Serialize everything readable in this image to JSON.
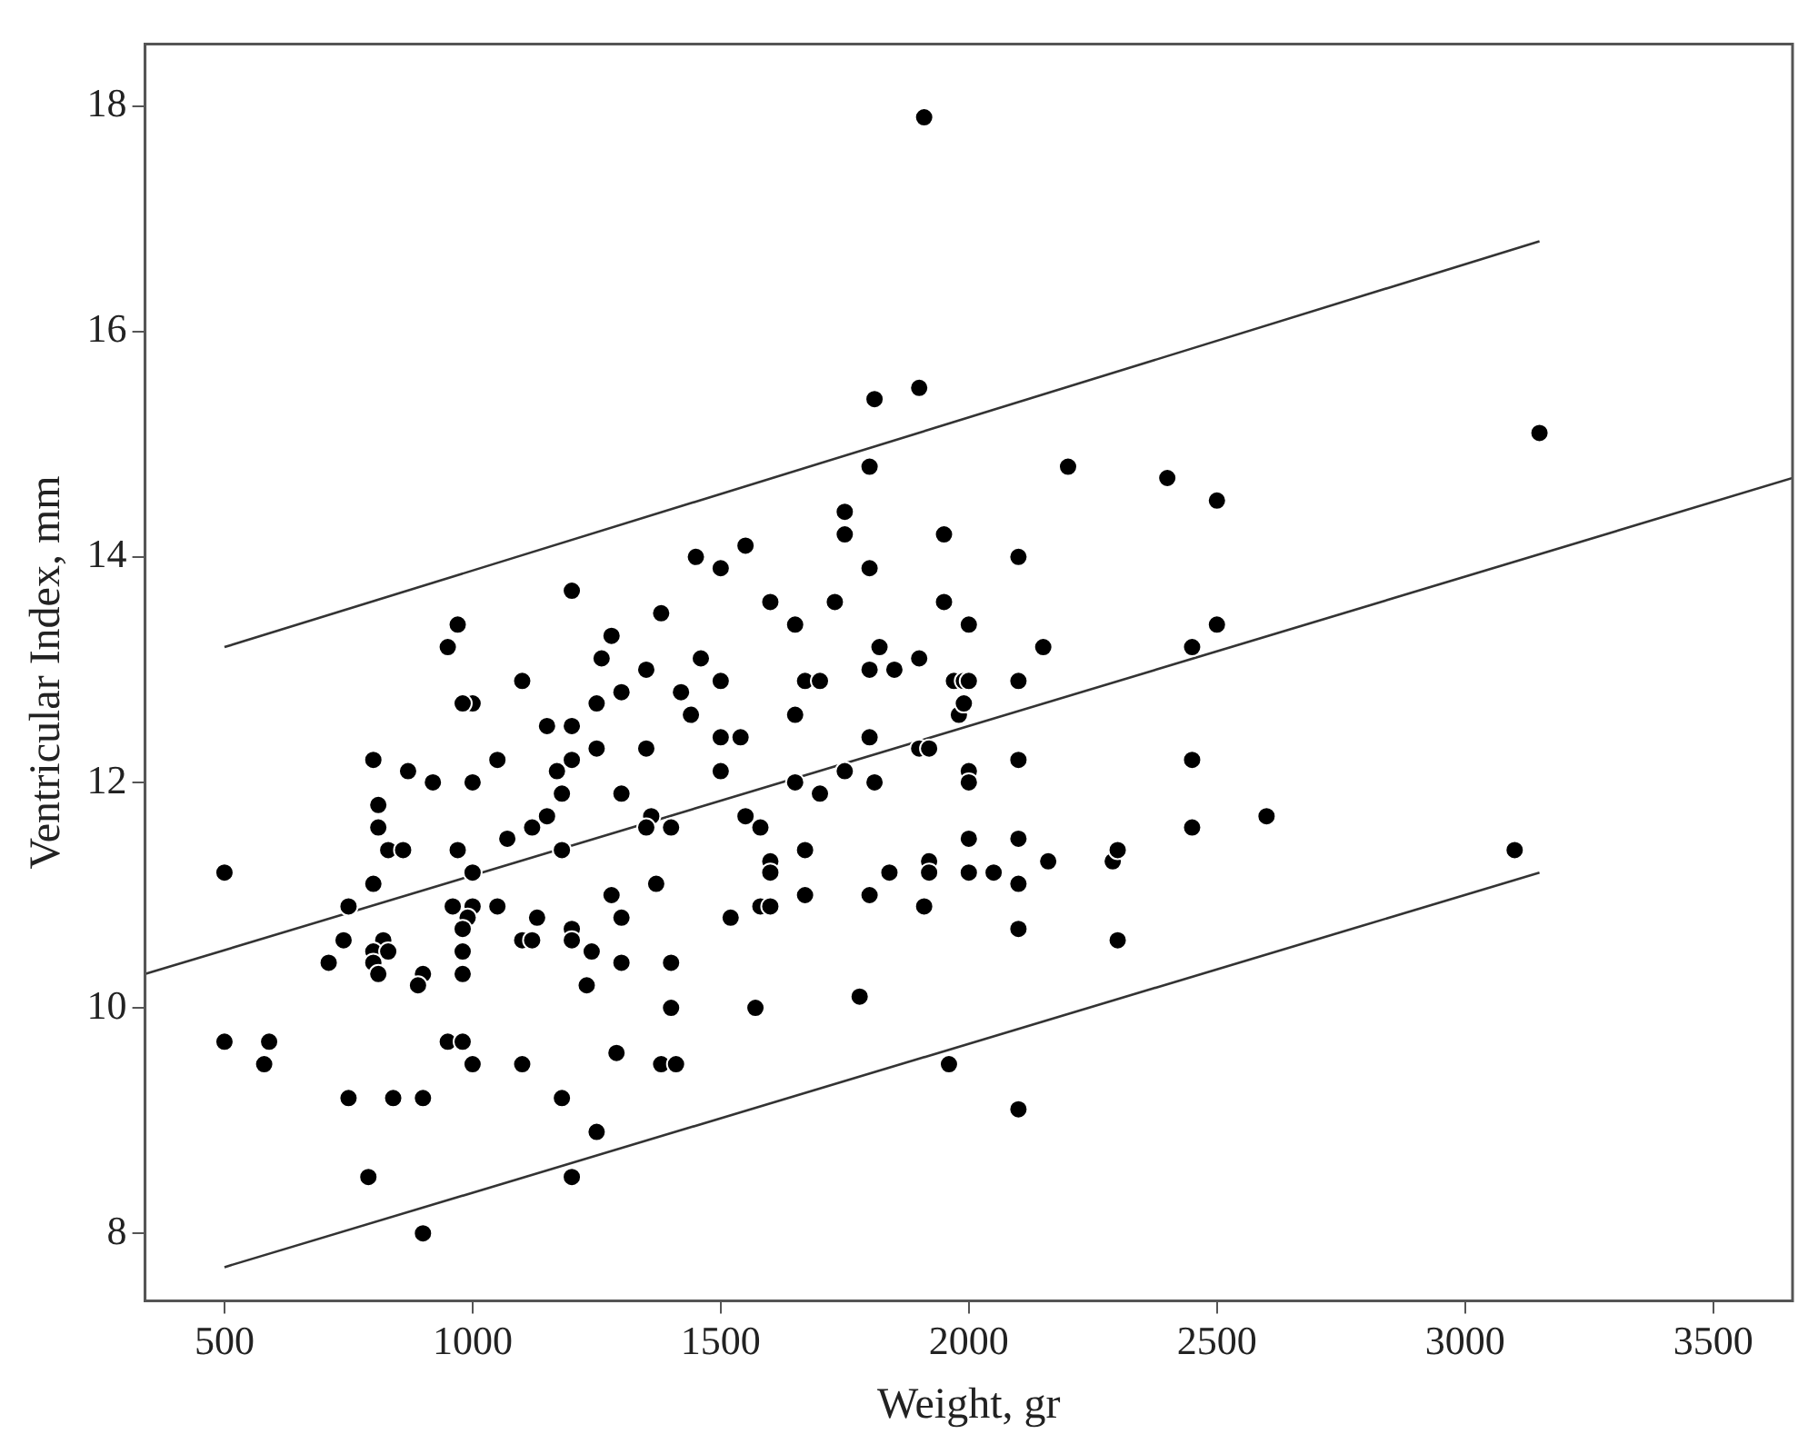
{
  "chart_data": {
    "type": "scatter",
    "xlabel": "Weight, gr",
    "ylabel": "Ventricular Index, mm",
    "xlim": [
      340,
      3660
    ],
    "ylim": [
      7.4,
      18.55
    ],
    "xticks": [
      500,
      1000,
      1500,
      2000,
      2500,
      3000,
      3500
    ],
    "yticks": [
      8,
      10,
      12,
      14,
      16,
      18
    ],
    "marker": "circle",
    "series": [
      {
        "type": "scatter",
        "color": "#000000",
        "x": [
          920,
          1000,
          1180,
          1300,
          810,
          810,
          1150,
          1120,
          1070,
          830,
          860,
          970,
          1180,
          1360,
          1350,
          500,
          1000,
          800,
          1370,
          1280,
          750,
          960,
          1000,
          1050,
          1300,
          1130,
          990,
          980,
          740,
          820,
          800,
          830,
          1100,
          1120,
          1200,
          1200,
          1240,
          710,
          800,
          810,
          980,
          980,
          900,
          890,
          1300,
          1400,
          1230,
          1400,
          500,
          590,
          580,
          950,
          980,
          1000,
          1100,
          1290,
          1380,
          750,
          840,
          900,
          1180,
          1250,
          790,
          1200,
          900,
          1200,
          1380,
          970,
          950,
          1280,
          1260,
          1350,
          1100,
          1000,
          980,
          1300,
          1250,
          1150,
          1200,
          1250,
          1350,
          800,
          870,
          1050,
          1170,
          1200,
          1810,
          1900,
          1800,
          2200,
          1750,
          1750,
          1950,
          1450,
          1550,
          1500,
          1800,
          2100,
          1600,
          1730,
          1950,
          1650,
          2000,
          2150,
          1820,
          1460,
          1800,
          1850,
          1900,
          1500,
          1670,
          1700,
          1970,
          1990,
          2000,
          2100,
          1420,
          1440,
          1650,
          1980,
          1990,
          1500,
          1540,
          1800,
          1900,
          1920,
          1500,
          2100,
          2000,
          2000,
          1650,
          1750,
          1810,
          1700,
          1400,
          1550,
          1580,
          1600,
          1600,
          1670,
          1840,
          1920,
          1920,
          2000,
          2100,
          2000,
          2050,
          2100,
          2160,
          2290,
          2300,
          1520,
          1580,
          1600,
          1670,
          1800,
          1910,
          2100,
          2300,
          1570,
          1780,
          1410,
          1960,
          2100,
          1910,
          3150,
          2400,
          2500,
          2500,
          2450,
          2450,
          2450,
          2600,
          3100
        ],
        "values": [
          12.0,
          12.0,
          11.9,
          11.9,
          11.8,
          11.6,
          11.7,
          11.6,
          11.5,
          11.4,
          11.4,
          11.4,
          11.4,
          11.7,
          11.6,
          11.2,
          11.2,
          11.1,
          11.1,
          11.0,
          10.9,
          10.9,
          10.9,
          10.9,
          10.8,
          10.8,
          10.8,
          10.7,
          10.6,
          10.6,
          10.5,
          10.5,
          10.6,
          10.6,
          10.7,
          10.6,
          10.5,
          10.4,
          10.4,
          10.3,
          10.5,
          10.3,
          10.3,
          10.2,
          10.4,
          10.4,
          10.2,
          10.0,
          9.7,
          9.7,
          9.5,
          9.7,
          9.7,
          9.5,
          9.5,
          9.6,
          9.5,
          9.2,
          9.2,
          9.2,
          9.2,
          8.9,
          8.5,
          8.5,
          8.0,
          13.7,
          13.5,
          13.4,
          13.2,
          13.3,
          13.1,
          13.0,
          12.9,
          12.7,
          12.7,
          12.8,
          12.7,
          12.5,
          12.5,
          12.3,
          12.3,
          12.2,
          12.1,
          12.2,
          12.1,
          12.2,
          15.4,
          15.5,
          14.8,
          14.8,
          14.4,
          14.2,
          14.2,
          14.0,
          14.1,
          13.9,
          13.9,
          14.0,
          13.6,
          13.6,
          13.6,
          13.4,
          13.4,
          13.2,
          13.2,
          13.1,
          13.0,
          13.0,
          13.1,
          12.9,
          12.9,
          12.9,
          12.9,
          12.9,
          12.9,
          12.9,
          12.8,
          12.6,
          12.6,
          12.6,
          12.7,
          12.4,
          12.4,
          12.4,
          12.3,
          12.3,
          12.1,
          12.2,
          12.1,
          12.0,
          12.0,
          12.1,
          12.0,
          11.9,
          11.6,
          11.7,
          11.6,
          11.3,
          11.2,
          11.4,
          11.2,
          11.3,
          11.2,
          11.5,
          11.5,
          11.2,
          11.2,
          11.1,
          11.3,
          11.3,
          11.4,
          10.8,
          10.9,
          10.9,
          11.0,
          11.0,
          10.9,
          10.7,
          10.6,
          10.0,
          10.1,
          9.5,
          9.5,
          9.1,
          17.9,
          15.1,
          14.7,
          14.5,
          13.4,
          13.2,
          12.2,
          11.6,
          11.7,
          11.4
        ]
      },
      {
        "type": "line",
        "color": "#333333",
        "marker": "none",
        "x": [
          340,
          3660
        ],
        "values": [
          10.3,
          14.7
        ]
      },
      {
        "type": "line",
        "color": "#333333",
        "marker": "none",
        "x": [
          500,
          3150
        ],
        "values": [
          13.2,
          16.8
        ]
      },
      {
        "type": "line",
        "color": "#333333",
        "marker": "none",
        "x": [
          500,
          3150
        ],
        "values": [
          7.7,
          11.2
        ]
      }
    ]
  }
}
